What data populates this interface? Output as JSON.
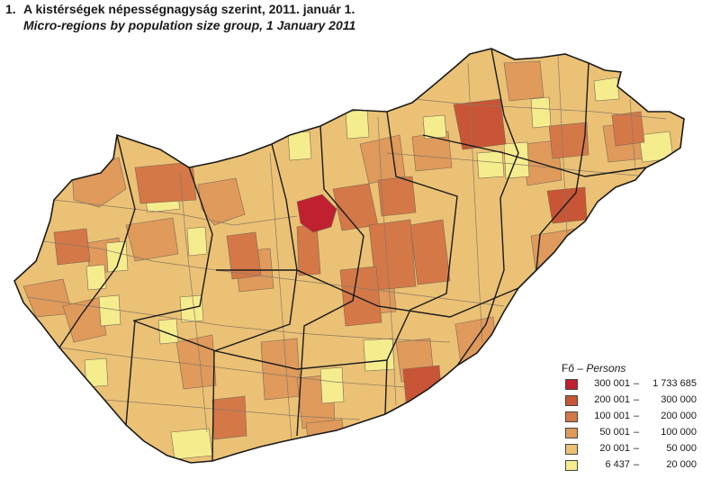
{
  "title": {
    "number": "1.",
    "hungarian": "A kistérségek népességnagyság szerint, 2011. január 1.",
    "english": "Micro-regions by population size group, 1 January 2011"
  },
  "legend": {
    "title_hu": "Fő –",
    "title_en": "Persons",
    "classes": [
      {
        "low": "300 001",
        "dash": "–",
        "high": "1 733 685",
        "color": "#c0202f"
      },
      {
        "low": "200 001",
        "dash": "–",
        "high": "300 000",
        "color": "#c85535"
      },
      {
        "low": "100 001",
        "dash": "–",
        "high": "200 000",
        "color": "#d47848"
      },
      {
        "low": "50 001",
        "dash": "–",
        "high": "100 000",
        "color": "#df9a5c"
      },
      {
        "low": "20 001",
        "dash": "–",
        "high": "50 000",
        "color": "#ebc175"
      },
      {
        "low": "6 437",
        "dash": "–",
        "high": "20 000",
        "color": "#f5ec8e"
      }
    ]
  }
}
